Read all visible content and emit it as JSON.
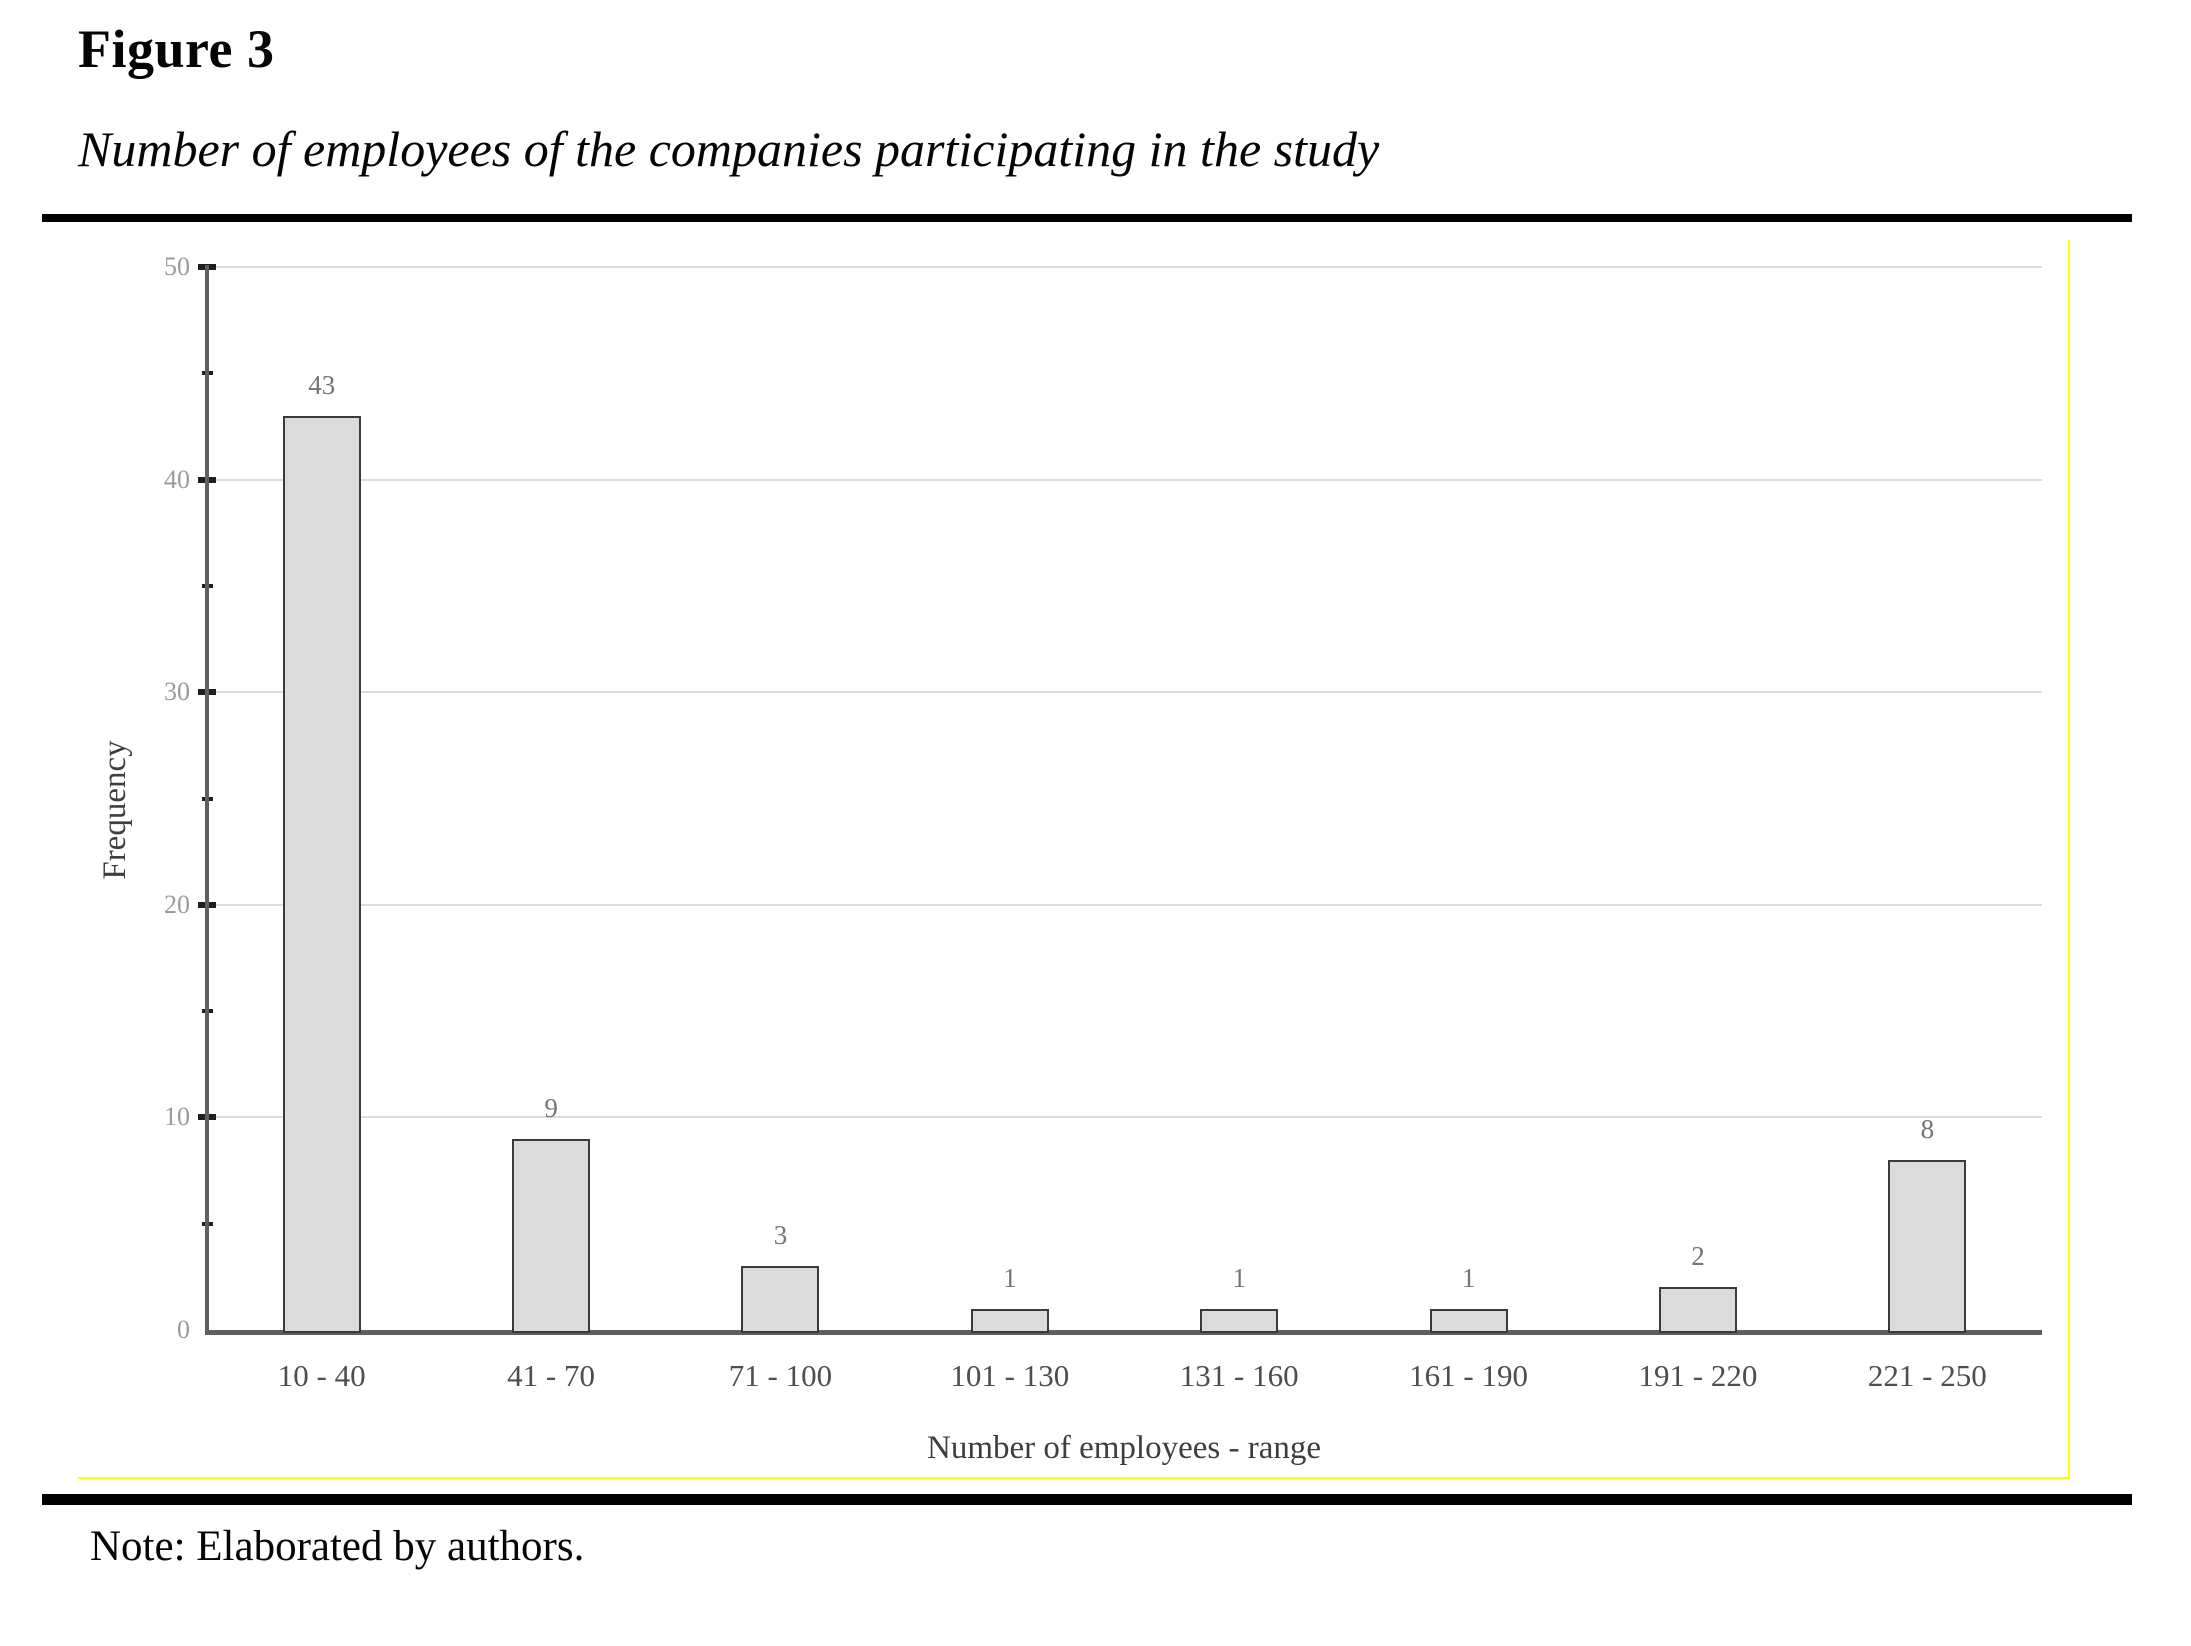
{
  "figure": {
    "label": "Figure 3",
    "caption": "Number of employees of the companies participating in the study"
  },
  "note": "Note: Elaborated by authors.",
  "chart_data": {
    "type": "bar",
    "title": "",
    "categories": [
      "10 - 40",
      "41 - 70",
      "71 - 100",
      "101 - 130",
      "131 - 160",
      "161 - 190",
      "191 - 220",
      "221 - 250"
    ],
    "values": [
      43,
      9,
      3,
      1,
      1,
      1,
      2,
      8
    ],
    "xlabel": "Number of employees - range",
    "ylabel": "Frequency",
    "ylim": [
      0,
      50
    ],
    "ytick_step": 10,
    "yminor_step": 5,
    "ytick_labels": [
      "0",
      "10",
      "20",
      "30",
      "40",
      "50"
    ],
    "grid": true,
    "legend": "none",
    "colors": {
      "bar_fill": "#dbdbdb",
      "bar_border": "#3a3a3a",
      "axis": "#5f5f5f",
      "tick_mark": "#1f1f1f",
      "gridline": "#dcdcdc",
      "ytick_label": "#9b9b9b",
      "value_label": "#757575",
      "category_label": "#4e4e4e",
      "chart_border": "#ffff00"
    }
  }
}
